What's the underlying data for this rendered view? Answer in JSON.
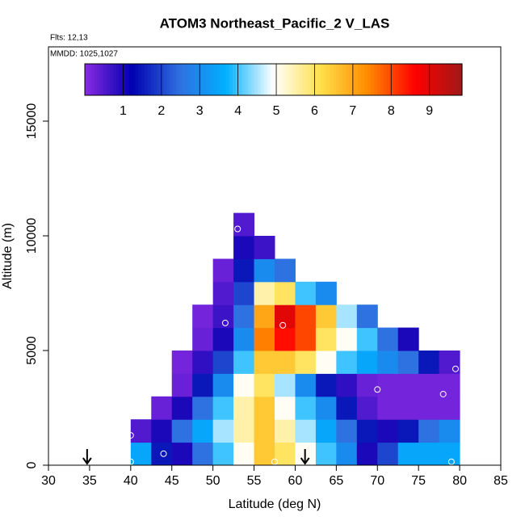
{
  "chart_data": {
    "type": "heatmap",
    "title": "ATOM3 Northeast_Pacific_2 V_LAS",
    "note_flights": "Flts: 12,13",
    "note_dates": "MMDD: 1025,1027",
    "xlabel": "Latitude (deg N)",
    "ylabel": "Altitude (m)",
    "xlim": [
      30,
      85
    ],
    "xticks": [
      30,
      35,
      40,
      45,
      50,
      55,
      60,
      65,
      70,
      75,
      80,
      85
    ],
    "ylim": [
      0,
      18240
    ],
    "yticks": [
      0,
      5000,
      10000,
      15000
    ],
    "x_bins": [
      40,
      42.5,
      45,
      47.5,
      50,
      52.5,
      55,
      57.5,
      60,
      62.5,
      65,
      67.5,
      70,
      72.5,
      75,
      77.5,
      80
    ],
    "y_bins": [
      0,
      1000,
      2000,
      3000,
      4000,
      5000,
      6000,
      7000,
      8000,
      9000,
      10000,
      11000
    ],
    "values": [
      [
        3.5,
        1.5,
        1,
        2.5,
        4,
        5,
        6.5,
        6,
        5,
        4,
        3,
        1,
        2,
        3.5,
        3.5,
        3.5
      ],
      [
        0.5,
        1,
        2.5,
        3.5,
        4.5,
        5.5,
        6.5,
        5.5,
        4.5,
        3.5,
        2.5,
        1.5,
        1,
        1.5,
        2.5,
        3
      ],
      [
        null,
        0.3,
        1,
        2.5,
        4,
        5.5,
        6.5,
        5,
        4,
        3,
        1.5,
        0.5,
        0.2,
        0.2,
        0.2,
        0.2
      ],
      [
        null,
        null,
        0.3,
        1.5,
        3,
        5,
        6,
        4.5,
        3,
        1.5,
        0.8,
        0.3,
        0.2,
        0.2,
        0.2,
        0.2
      ],
      [
        null,
        null,
        0.2,
        0.8,
        2,
        4,
        6.5,
        6.5,
        6,
        5,
        4,
        3.5,
        3,
        2.5,
        1.5,
        0.5
      ],
      [
        null,
        null,
        null,
        0.3,
        1,
        3,
        7.5,
        8.5,
        8,
        6,
        5,
        4,
        2.5,
        1,
        null,
        null
      ],
      [
        null,
        null,
        null,
        0.2,
        0.7,
        2.5,
        7,
        9,
        8,
        6.5,
        4.5,
        2.5,
        null,
        null,
        null,
        null
      ],
      [
        null,
        null,
        null,
        null,
        0.5,
        2,
        5.5,
        6,
        4,
        3,
        null,
        null,
        null,
        null,
        null,
        null
      ],
      [
        null,
        null,
        null,
        null,
        0.3,
        1.5,
        3,
        2.5,
        null,
        null,
        null,
        null,
        null,
        null,
        null,
        null
      ],
      [
        null,
        null,
        null,
        null,
        null,
        1,
        0.7,
        null,
        null,
        null,
        null,
        null,
        null,
        null,
        null,
        null
      ],
      [
        null,
        null,
        null,
        null,
        null,
        0.5,
        null,
        null,
        null,
        null,
        null,
        null,
        null,
        null,
        null,
        null
      ]
    ],
    "colormap": [
      "#8a2be2",
      "#0000b0",
      "#2f6fe0",
      "#00b0ff",
      "#ffffff",
      "#ffe04a",
      "#ff8c00",
      "#ff0000",
      "#a01818"
    ],
    "colorbar_lim": [
      0,
      9.85
    ],
    "colorbar_ticks": [
      1,
      2,
      3,
      4,
      5,
      6,
      7,
      8,
      9
    ],
    "points": {
      "x": [
        53,
        51.5,
        58.5,
        79.5,
        70,
        78,
        40,
        44,
        40,
        57.5,
        79
      ],
      "y": [
        10300,
        6200,
        6100,
        4200,
        3300,
        3100,
        1300,
        500,
        150,
        150,
        150
      ]
    },
    "arrows": {
      "x": [
        34.7,
        61.2
      ]
    }
  }
}
